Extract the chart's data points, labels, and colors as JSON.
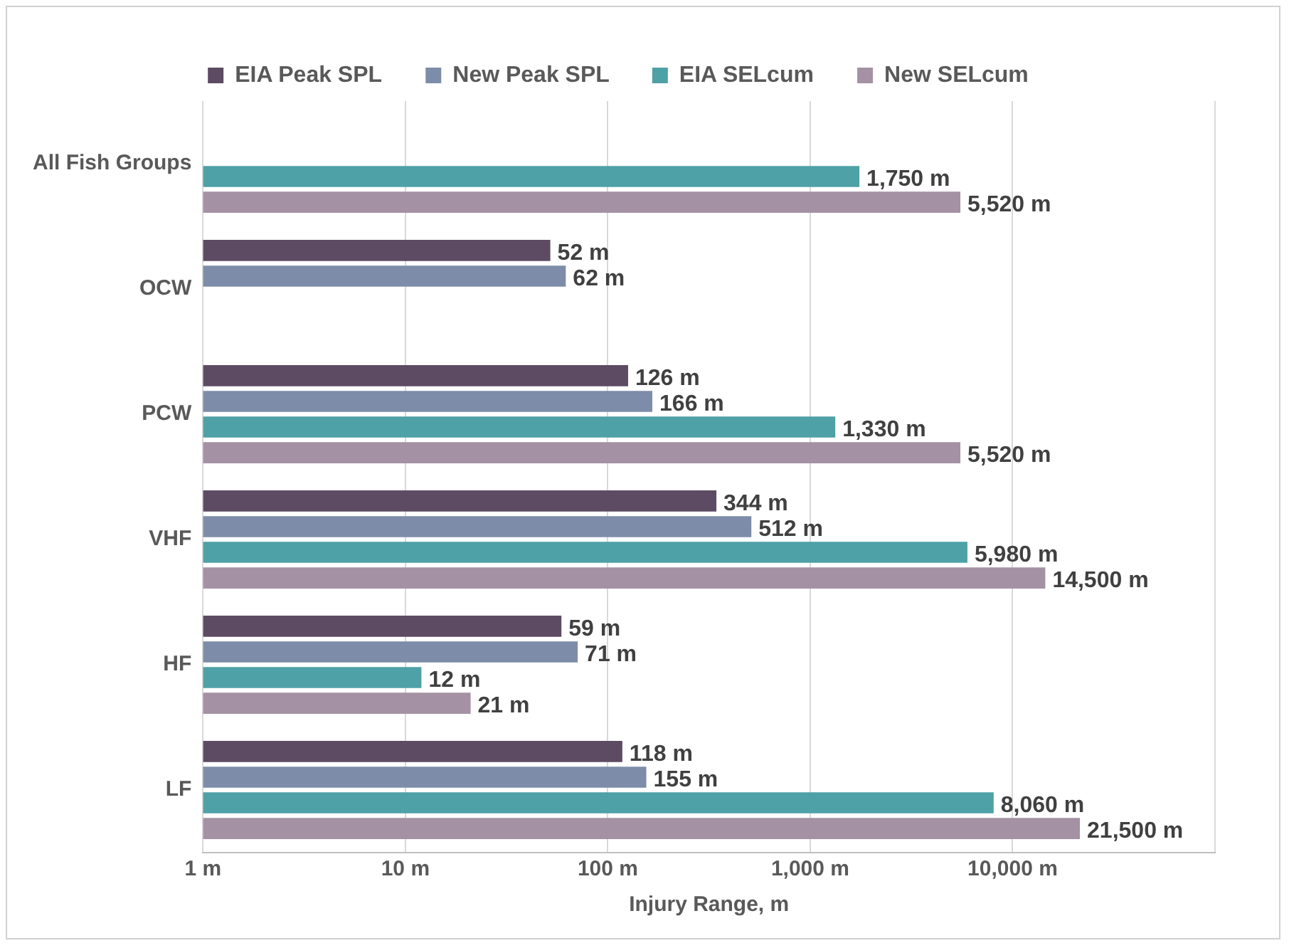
{
  "chart_data": {
    "type": "bar",
    "orientation": "horizontal",
    "log": "x",
    "grid": "x",
    "legend": "top",
    "xlabel": "Injury Range, m",
    "categories": [
      "All Fish Groups",
      "OCW",
      "PCW",
      "VHF",
      "HF",
      "LF"
    ],
    "xlim": [
      1,
      100000
    ],
    "xticks": [
      {
        "value": 1,
        "label": "1 m"
      },
      {
        "value": 10,
        "label": "10 m"
      },
      {
        "value": 100,
        "label": "100 m"
      },
      {
        "value": 1000,
        "label": "1,000 m"
      },
      {
        "value": 10000,
        "label": "10,000 m"
      },
      {
        "value": 100000,
        "label": null
      }
    ],
    "series": [
      {
        "name": "EIA Peak SPL",
        "color": "#5d4b63",
        "values": [
          null,
          52,
          126,
          344,
          59,
          118
        ],
        "value_labels": [
          null,
          "52 m",
          "126 m",
          "344 m",
          "59 m",
          "118 m"
        ]
      },
      {
        "name": "New Peak SPL",
        "color": "#7d8ca8",
        "values": [
          null,
          62,
          166,
          512,
          71,
          155
        ],
        "value_labels": [
          null,
          "62 m",
          "166 m",
          "512 m",
          "71 m",
          "155 m"
        ]
      },
      {
        "name": "EIA SELcum",
        "color": "#4ea1a6",
        "values": [
          1750,
          null,
          1330,
          5980,
          12,
          8060
        ],
        "value_labels": [
          "1,750 m",
          null,
          "1,330 m",
          "5,980 m",
          "12 m",
          "8,060 m"
        ]
      },
      {
        "name": "New SELcum",
        "color": "#a491a4",
        "values": [
          5520,
          null,
          5520,
          14500,
          21,
          21500
        ],
        "value_labels": [
          "5,520 m",
          null,
          "5,520 m",
          "14,500 m",
          "21 m",
          "21,500 m"
        ]
      }
    ]
  }
}
